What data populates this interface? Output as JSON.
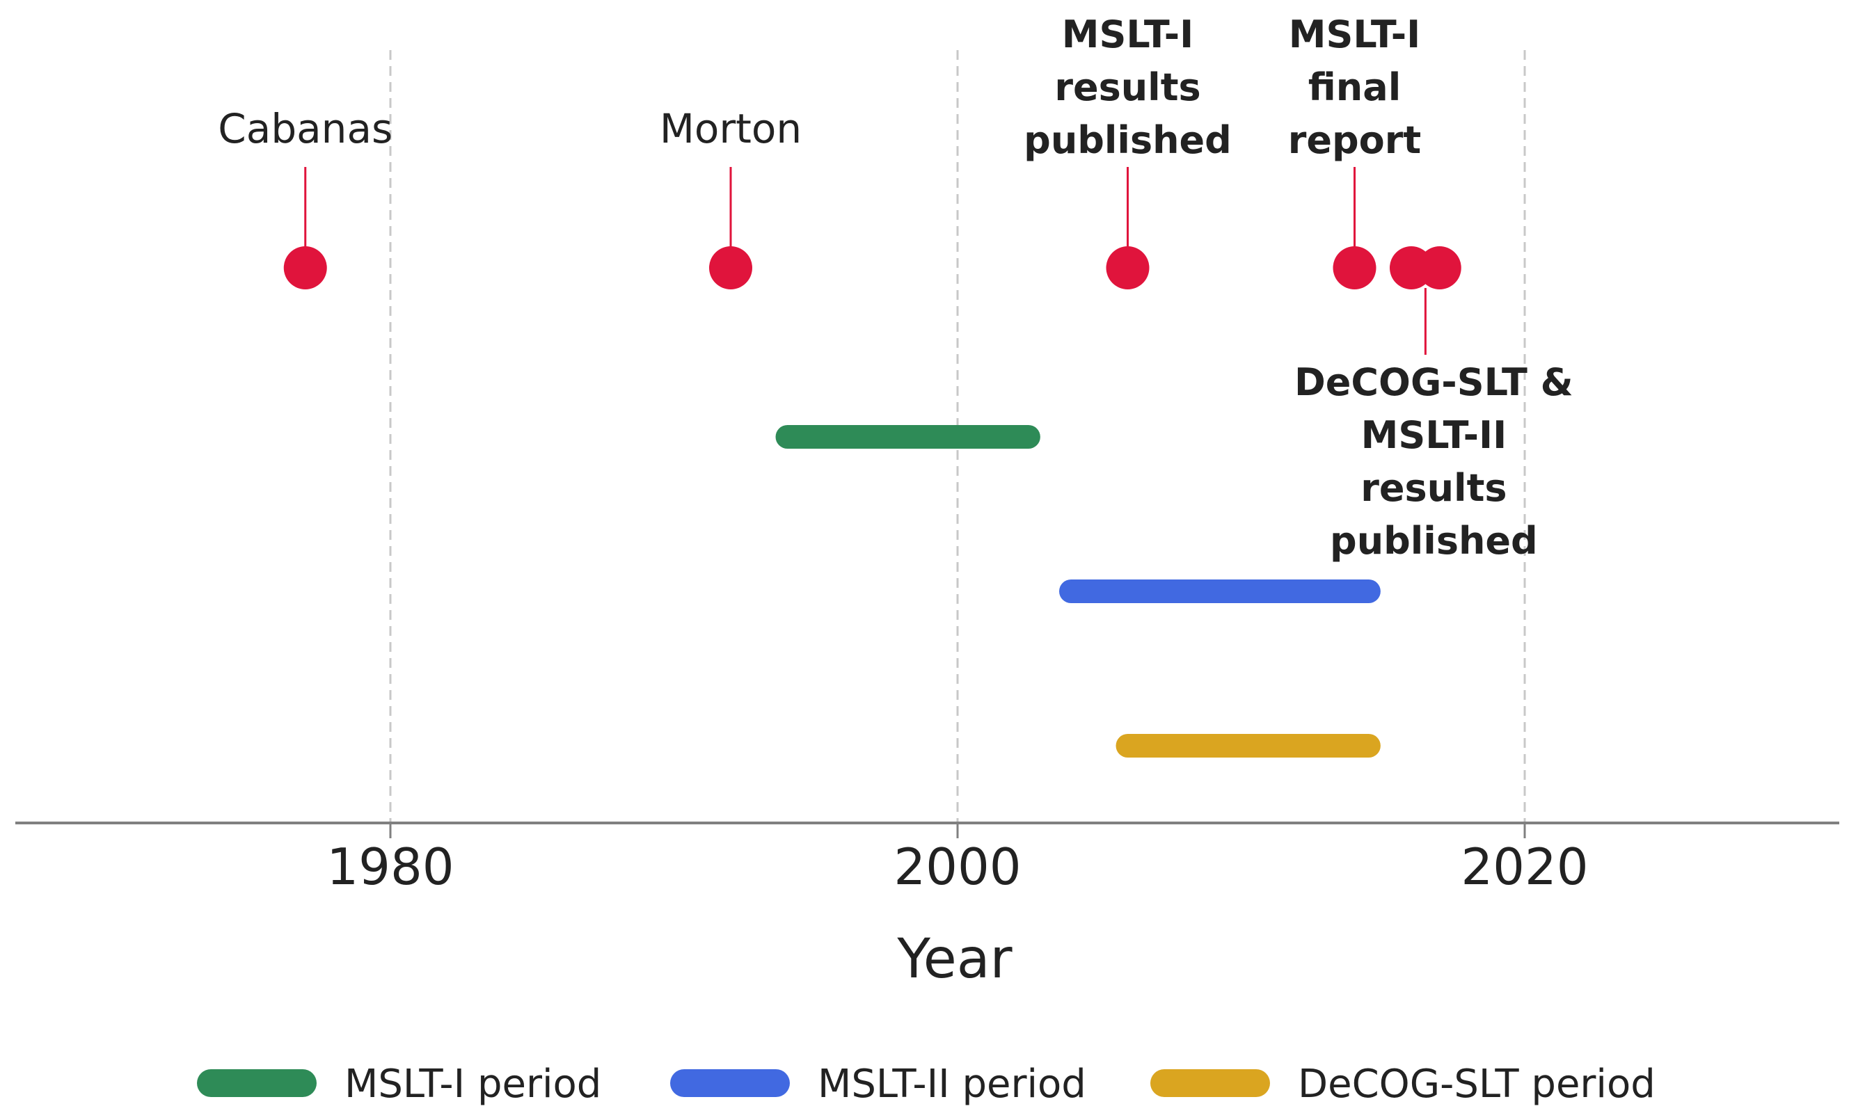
{
  "chart_data": {
    "type": "timeline",
    "xlabel": "Year",
    "xlim": [
      1967,
      2031
    ],
    "xticks": [
      1980,
      2000,
      2020
    ],
    "grid": "vertical dashed at ticks",
    "legend_placement": "bottom",
    "colors": {
      "event": "#e0143c",
      "mslt1": "#2e8b57",
      "mslt2": "#4169e1",
      "decog": "#daa520",
      "axis": "#808080",
      "grid": "#c8c8c8"
    },
    "events": [
      {
        "year": 1977,
        "label": [
          "Cabanas"
        ],
        "position": "above",
        "bold": false
      },
      {
        "year": 1992,
        "label": [
          "Morton"
        ],
        "position": "above",
        "bold": false
      },
      {
        "year": 2006,
        "label": [
          "MSLT-I",
          "results",
          "published"
        ],
        "position": "above",
        "bold": true
      },
      {
        "year": 2014,
        "label": [
          "MSLT-I",
          "final",
          "report"
        ],
        "position": "above",
        "bold": true
      },
      {
        "year": 2016,
        "label": [],
        "position": "none",
        "bold": true
      },
      {
        "year": 2017,
        "label": [
          "DeCOG-SLT &",
          "MSLT-II",
          "results",
          "published"
        ],
        "position": "below",
        "bold": true,
        "stem_year": 2016.5
      }
    ],
    "periods": [
      {
        "name": "MSLT-I period",
        "start": 1994,
        "end": 2002.5,
        "color": "#2e8b57"
      },
      {
        "name": "MSLT-II period",
        "start": 2004,
        "end": 2014.5,
        "color": "#4169e1"
      },
      {
        "name": "DeCOG-SLT period",
        "start": 2006,
        "end": 2014.5,
        "color": "#daa520"
      }
    ]
  }
}
